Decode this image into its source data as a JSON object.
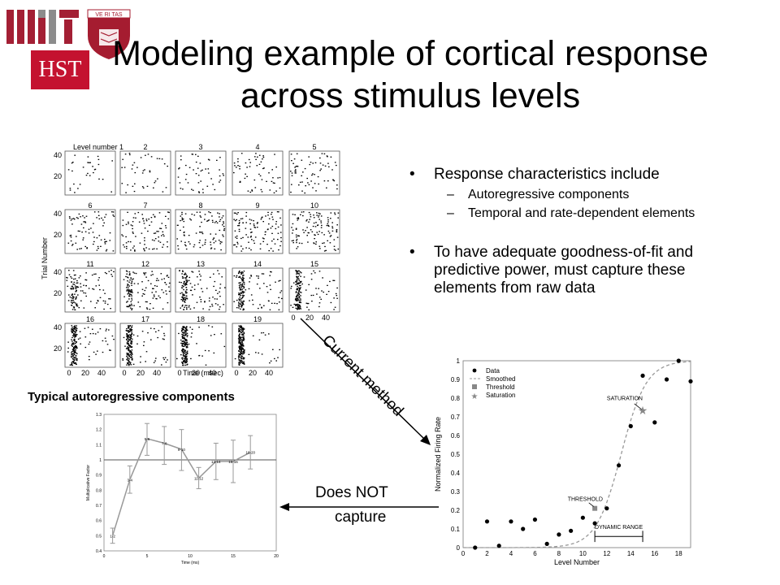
{
  "logos": {
    "mit": "MIT",
    "harvard_shield": "VE RI TAS",
    "hst": "HST"
  },
  "slide": {
    "title": "Modeling example of cortical response across stimulus levels",
    "bullets": [
      {
        "text": "Response characteristics include",
        "subs": [
          "Autoregressive components",
          "Temporal and rate-dependent elements"
        ]
      },
      {
        "text": "To have adequate goodness-of-fit and predictive power, must capture these elements from raw data",
        "subs": []
      }
    ],
    "arrow_current": "Current method",
    "arrow_not_capture_line1": "Does NOT",
    "arrow_not_capture_line2": "capture",
    "ar_caption": "Typical autoregressive components"
  },
  "colors": {
    "mit_red": "#a31f34",
    "harvard_red": "#a51c30",
    "gray": "#8c8c8c"
  },
  "chart_data": [
    {
      "type": "scatter",
      "name": "raster",
      "level_labels": [
        "Level number 1",
        "2",
        "3",
        "4",
        "5",
        "6",
        "7",
        "8",
        "9",
        "10",
        "11",
        "12",
        "13",
        "14",
        "15",
        "16",
        "17",
        "18",
        "19"
      ],
      "ylabel": "Trial Number",
      "xlabel": "Time (msec)",
      "y_ticks": [
        "40",
        "20"
      ],
      "x_ticks": [
        "0",
        "20",
        "40"
      ]
    },
    {
      "type": "line",
      "name": "autoregressive",
      "x": [
        1,
        3,
        5,
        7,
        9,
        11,
        13,
        15,
        17
      ],
      "values": [
        0.5,
        0.87,
        1.14,
        1.11,
        1.07,
        0.88,
        0.99,
        0.99,
        1.05
      ],
      "err_low": [
        0.45,
        0.78,
        1.03,
        0.97,
        0.93,
        0.81,
        0.87,
        0.85,
        0.94
      ],
      "err_high": [
        0.55,
        0.96,
        1.24,
        1.22,
        1.2,
        0.95,
        1.11,
        1.13,
        1.16
      ],
      "point_labels": [
        "1-2",
        "3-4",
        "5-6",
        "7-8",
        "9-10",
        "11-12",
        "13-14",
        "15-16",
        "16-20"
      ],
      "xlabel": "Time (ms)",
      "ylabel": "Multiplicative Factor",
      "xlim": [
        0,
        20
      ],
      "ylim": [
        0.4,
        1.3
      ],
      "x_ticks": [
        "0",
        "5",
        "10",
        "15",
        "20"
      ],
      "y_ticks": [
        "0.4",
        "0.5",
        "0.6",
        "0.7",
        "0.8",
        "0.9",
        "1",
        "1.1",
        "1.2",
        "1.3"
      ]
    },
    {
      "type": "scatter",
      "name": "firing_rate",
      "xlabel": "Level Number",
      "ylabel": "Normalized Firing Rate",
      "xlim": [
        0,
        19
      ],
      "ylim": [
        0,
        1
      ],
      "x_ticks": [
        "0",
        "2",
        "4",
        "6",
        "8",
        "10",
        "12",
        "14",
        "16",
        "18"
      ],
      "y_ticks": [
        "0",
        "0.1",
        "0.2",
        "0.3",
        "0.4",
        "0.5",
        "0.6",
        "0.7",
        "0.8",
        "0.9",
        "1"
      ],
      "legend": [
        "Data",
        "Smoothed",
        "Threshold",
        "Saturation"
      ],
      "legend_position": "top-left",
      "data_x": [
        1,
        2,
        3,
        4,
        5,
        6,
        7,
        8,
        9,
        10,
        11,
        12,
        13,
        14,
        15,
        16,
        17,
        18,
        19
      ],
      "data_y": [
        0.0,
        0.14,
        0.01,
        0.14,
        0.1,
        0.15,
        0.02,
        0.07,
        0.09,
        0.16,
        0.13,
        0.21,
        0.44,
        0.65,
        0.92,
        0.67,
        0.9,
        1.0,
        0.89
      ],
      "threshold": {
        "x": 11,
        "y": 0.21
      },
      "saturation": {
        "x": 15,
        "y": 0.73
      },
      "annotations": [
        "SATURATION",
        "THRESHOLD",
        "DYNAMIC RANGE"
      ]
    }
  ]
}
